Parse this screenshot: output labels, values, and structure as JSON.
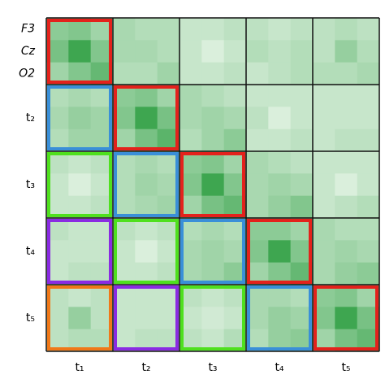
{
  "chart_data": {
    "type": "heatmap",
    "categories": [
      "t₁",
      "t₂",
      "t₃",
      "t₄",
      "t₅"
    ],
    "row_labels": [
      "F3",
      "Cz",
      "O2"
    ],
    "colormap": [
      "#eef8ee",
      "#2a9d3e"
    ],
    "values": [
      [
        0.5,
        0.55,
        0.4,
        0.35,
        0.3,
        0.3,
        0.2,
        0.2,
        0.25,
        0.25,
        0.2,
        0.25,
        0.25,
        0.3,
        0.25
      ],
      [
        0.6,
        0.9,
        0.55,
        0.35,
        0.35,
        0.3,
        0.2,
        0.1,
        0.2,
        0.3,
        0.25,
        0.3,
        0.25,
        0.45,
        0.3
      ],
      [
        0.4,
        0.55,
        0.7,
        0.3,
        0.3,
        0.4,
        0.2,
        0.2,
        0.25,
        0.2,
        0.25,
        0.3,
        0.3,
        0.3,
        0.35
      ],
      [
        0.3,
        0.35,
        0.3,
        0.5,
        0.55,
        0.4,
        0.35,
        0.3,
        0.25,
        0.2,
        0.2,
        0.2,
        0.2,
        0.2,
        0.2
      ],
      [
        0.35,
        0.45,
        0.4,
        0.55,
        0.9,
        0.6,
        0.35,
        0.4,
        0.35,
        0.25,
        0.1,
        0.2,
        0.2,
        0.2,
        0.2
      ],
      [
        0.3,
        0.4,
        0.4,
        0.4,
        0.6,
        0.75,
        0.3,
        0.4,
        0.5,
        0.2,
        0.2,
        0.25,
        0.2,
        0.25,
        0.25
      ],
      [
        0.25,
        0.2,
        0.25,
        0.3,
        0.35,
        0.3,
        0.5,
        0.55,
        0.4,
        0.35,
        0.3,
        0.25,
        0.2,
        0.2,
        0.2
      ],
      [
        0.2,
        0.1,
        0.2,
        0.3,
        0.4,
        0.35,
        0.55,
        0.9,
        0.55,
        0.35,
        0.4,
        0.35,
        0.2,
        0.1,
        0.2
      ],
      [
        0.2,
        0.2,
        0.25,
        0.3,
        0.35,
        0.4,
        0.4,
        0.6,
        0.7,
        0.35,
        0.45,
        0.55,
        0.2,
        0.25,
        0.3
      ],
      [
        0.25,
        0.2,
        0.2,
        0.25,
        0.2,
        0.25,
        0.3,
        0.35,
        0.3,
        0.5,
        0.5,
        0.4,
        0.35,
        0.3,
        0.3
      ],
      [
        0.2,
        0.2,
        0.2,
        0.2,
        0.1,
        0.2,
        0.35,
        0.4,
        0.35,
        0.55,
        0.9,
        0.55,
        0.35,
        0.4,
        0.35
      ],
      [
        0.2,
        0.25,
        0.25,
        0.2,
        0.2,
        0.25,
        0.35,
        0.4,
        0.5,
        0.4,
        0.55,
        0.7,
        0.35,
        0.45,
        0.5
      ],
      [
        0.25,
        0.2,
        0.25,
        0.2,
        0.2,
        0.2,
        0.25,
        0.2,
        0.25,
        0.35,
        0.35,
        0.3,
        0.5,
        0.55,
        0.4
      ],
      [
        0.25,
        0.45,
        0.25,
        0.2,
        0.2,
        0.2,
        0.2,
        0.15,
        0.2,
        0.35,
        0.45,
        0.4,
        0.55,
        0.9,
        0.6
      ],
      [
        0.25,
        0.3,
        0.3,
        0.2,
        0.25,
        0.25,
        0.25,
        0.2,
        0.3,
        0.3,
        0.45,
        0.5,
        0.4,
        0.6,
        0.7
      ]
    ],
    "outline_colors": [
      [
        "#e3221c",
        null,
        null,
        null,
        null
      ],
      [
        "#3a8fd8",
        "#e3221c",
        null,
        null,
        null
      ],
      [
        "#4fe01e",
        "#3a8fd8",
        "#e3221c",
        null,
        null
      ],
      [
        "#8a2be2",
        "#4fe01e",
        "#3a8fd8",
        "#e3221c",
        null
      ],
      [
        "#f07818",
        "#8a2be2",
        "#4fe01e",
        "#3a8fd8",
        "#e3221c"
      ]
    ]
  }
}
